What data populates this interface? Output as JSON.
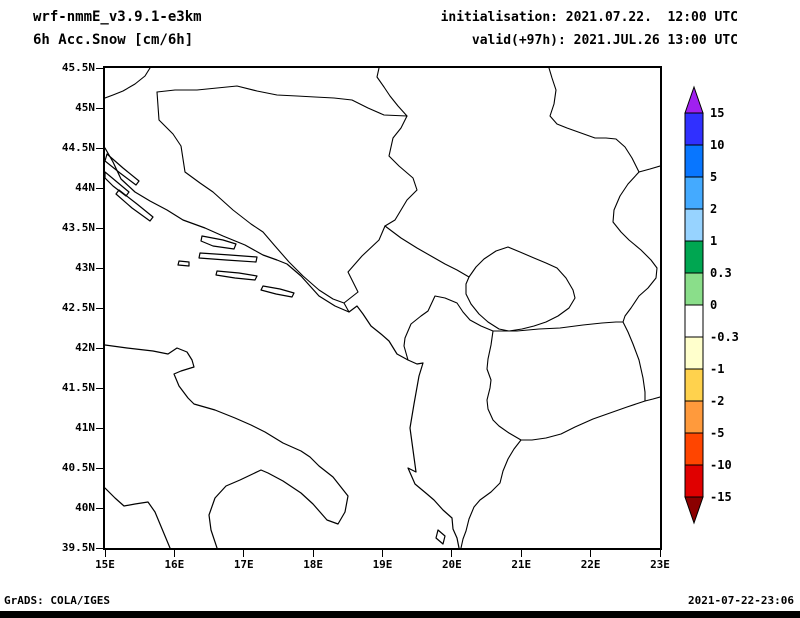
{
  "header": {
    "model_name": "wrf-nmmE_v3.9.1-e3km",
    "product_title": "6h Acc.Snow [cm/6h]",
    "init_line": "initialisation: 2021.07.22.  12:00 UTC",
    "valid_line": "valid(+97h): 2021.JUL.26 13:00 UTC"
  },
  "footer": {
    "credit": "GrADS: COLA/IGES",
    "created": "2021-07-22-23:06"
  },
  "chart_data": {
    "type": "heatmap",
    "title": "6h Acc.Snow [cm/6h]",
    "model": "wrf-nmmE_v3.9.1-e3km",
    "initialisation": "2021.07.22. 12:00 UTC",
    "valid": "2021.JUL.26 13:00 UTC (+97h)",
    "region": "Adriatic / Balkans",
    "lon_range": [
      15,
      23
    ],
    "lat_range": [
      39.5,
      45.5
    ],
    "lat_ticks": [
      "45.5N",
      "45N",
      "44.5N",
      "44N",
      "43.5N",
      "43N",
      "42.5N",
      "42N",
      "41.5N",
      "41N",
      "40.5N",
      "40N",
      "39.5N"
    ],
    "lon_ticks": [
      "15E",
      "16E",
      "17E",
      "18E",
      "19E",
      "20E",
      "21E",
      "22E",
      "23E"
    ],
    "grid": false,
    "legend_position": "right-colorbar",
    "colorbar": {
      "units": "cm/6h",
      "levels": [
        "15",
        "10",
        "5",
        "2",
        "1",
        "0.3",
        "0",
        "-0.3",
        "-1",
        "-2",
        "-5",
        "-10",
        "-15"
      ],
      "colors": [
        "#a020f0",
        "#3030ff",
        "#0876ff",
        "#44aaff",
        "#97d3ff",
        "#00a651",
        "#8ade8a",
        "#ffffff",
        "#ffffcc",
        "#ffd24d",
        "#ff9a3c",
        "#ff4500",
        "#e00000",
        "#8b0000"
      ]
    },
    "field_values_note": "No snow accumulation shaded anywhere in the domain; entire map area falls in the white (0) bin. Only coastlines and country borders are drawn."
  }
}
